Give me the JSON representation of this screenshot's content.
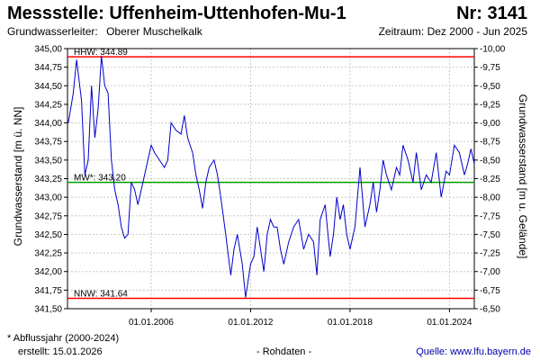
{
  "header": {
    "title": "Messstelle: Uffenheim-Uttenhofen-Mu-1",
    "number": "Nr: 3141",
    "aquifer_label": "Grundwasserleiter:",
    "aquifer": "Oberer Muschelkalk",
    "period": "Zeitraum: Dez 2000 - Jun 2025"
  },
  "footer": {
    "note": "* Abflussjahr (2000-2024)",
    "created": "erstellt:  15.01.2026",
    "mode": "- Rohdaten -",
    "source": "Quelle: www.lfu.bayern.de"
  },
  "colors": {
    "hhw": "#ff0000",
    "mw": "#00a000",
    "nnw": "#ff0000",
    "series": "#0000cc",
    "grid": "#c8c8c8",
    "source_link": "#0000aa"
  },
  "chart_data": {
    "type": "line",
    "ylabel": "Grundwasserstand [m ü. NN]",
    "ylabel_right": "Grundwasserstand [m u. Gelände]",
    "ylim": [
      341.5,
      345.0
    ],
    "ylim_right": [
      -10.0,
      -6.5
    ],
    "xlim": [
      2000.95,
      2025.5
    ],
    "yticks": [
      "341,50",
      "341,75",
      "342,00",
      "342,25",
      "342,50",
      "342,75",
      "343,00",
      "343,25",
      "343,50",
      "343,75",
      "344,00",
      "344,25",
      "344,50",
      "344,75",
      "345,00"
    ],
    "yticks_right": [
      "-6,50",
      "-6,75",
      "-7,00",
      "-7,25",
      "-7,50",
      "-7,75",
      "-8,00",
      "-8,25",
      "-8,50",
      "-8,75",
      "-9,00",
      "-9,25",
      "-9,50",
      "-9,75",
      "-10,00"
    ],
    "xticks": [
      {
        "x": 2006.0,
        "label": "01.01.2006"
      },
      {
        "x": 2012.0,
        "label": "01.01.2012"
      },
      {
        "x": 2018.0,
        "label": "01.01.2018"
      },
      {
        "x": 2024.0,
        "label": "01.01.2024"
      }
    ],
    "reference_lines": [
      {
        "key": "hhw",
        "label": "HHW: 344.89",
        "value": 344.89
      },
      {
        "key": "mw",
        "label": "MW*: 343.20",
        "value": 343.2
      },
      {
        "key": "nnw",
        "label": "NNW: 341.64",
        "value": 341.64
      }
    ],
    "grid": true,
    "series": [
      {
        "x": [
          2001.0,
          2001.3,
          2001.5,
          2001.8,
          2002.0,
          2002.2,
          2002.4,
          2002.6,
          2002.8,
          2003.0,
          2003.2,
          2003.4,
          2003.6,
          2003.8,
          2004.0,
          2004.2,
          2004.4,
          2004.6,
          2004.8,
          2005.0,
          2005.2,
          2005.5,
          2005.8,
          2006.0,
          2006.2,
          2006.5,
          2006.8,
          2007.0,
          2007.2,
          2007.5,
          2007.8,
          2008.0,
          2008.2,
          2008.5,
          2008.7,
          2008.9,
          2009.1,
          2009.3,
          2009.5,
          2009.8,
          2010.0,
          2010.2,
          2010.5,
          2010.8,
          2011.0,
          2011.2,
          2011.5,
          2011.7,
          2012.0,
          2012.2,
          2012.4,
          2012.6,
          2012.8,
          2013.0,
          2013.2,
          2013.4,
          2013.6,
          2013.8,
          2014.0,
          2014.3,
          2014.6,
          2014.9,
          2015.2,
          2015.5,
          2015.8,
          2016.0,
          2016.2,
          2016.5,
          2016.8,
          2017.0,
          2017.2,
          2017.4,
          2017.6,
          2017.8,
          2018.0,
          2018.3,
          2018.6,
          2018.9,
          2019.2,
          2019.4,
          2019.6,
          2019.8,
          2020.0,
          2020.2,
          2020.5,
          2020.8,
          2021.0,
          2021.2,
          2021.5,
          2021.8,
          2022.0,
          2022.3,
          2022.6,
          2022.9,
          2023.2,
          2023.5,
          2023.8,
          2024.0,
          2024.3,
          2024.6,
          2024.9,
          2025.1,
          2025.3,
          2025.5
        ],
        "y": [
          344.0,
          344.4,
          344.85,
          344.3,
          343.3,
          343.5,
          344.5,
          343.8,
          344.2,
          344.9,
          344.5,
          344.4,
          343.5,
          343.1,
          342.9,
          342.6,
          342.45,
          342.5,
          343.2,
          343.1,
          342.9,
          343.2,
          343.5,
          343.7,
          343.6,
          343.5,
          343.4,
          343.5,
          344.0,
          343.9,
          343.85,
          344.1,
          343.8,
          343.6,
          343.3,
          343.1,
          342.85,
          343.2,
          343.4,
          343.5,
          343.3,
          343.0,
          342.5,
          341.95,
          342.3,
          342.5,
          342.1,
          341.65,
          342.1,
          342.2,
          342.6,
          342.3,
          342.0,
          342.5,
          342.7,
          342.6,
          342.6,
          342.3,
          342.1,
          342.4,
          342.6,
          342.7,
          342.3,
          342.5,
          342.4,
          341.95,
          342.7,
          342.9,
          342.2,
          342.5,
          343.0,
          342.7,
          342.9,
          342.5,
          342.3,
          342.6,
          343.4,
          342.6,
          342.9,
          343.2,
          342.8,
          343.1,
          343.5,
          343.3,
          343.1,
          343.4,
          343.3,
          343.7,
          343.5,
          343.2,
          343.6,
          343.1,
          343.3,
          343.2,
          343.6,
          343.0,
          343.35,
          343.3,
          343.7,
          343.6,
          343.3,
          343.45,
          343.65,
          343.45
        ]
      }
    ]
  }
}
